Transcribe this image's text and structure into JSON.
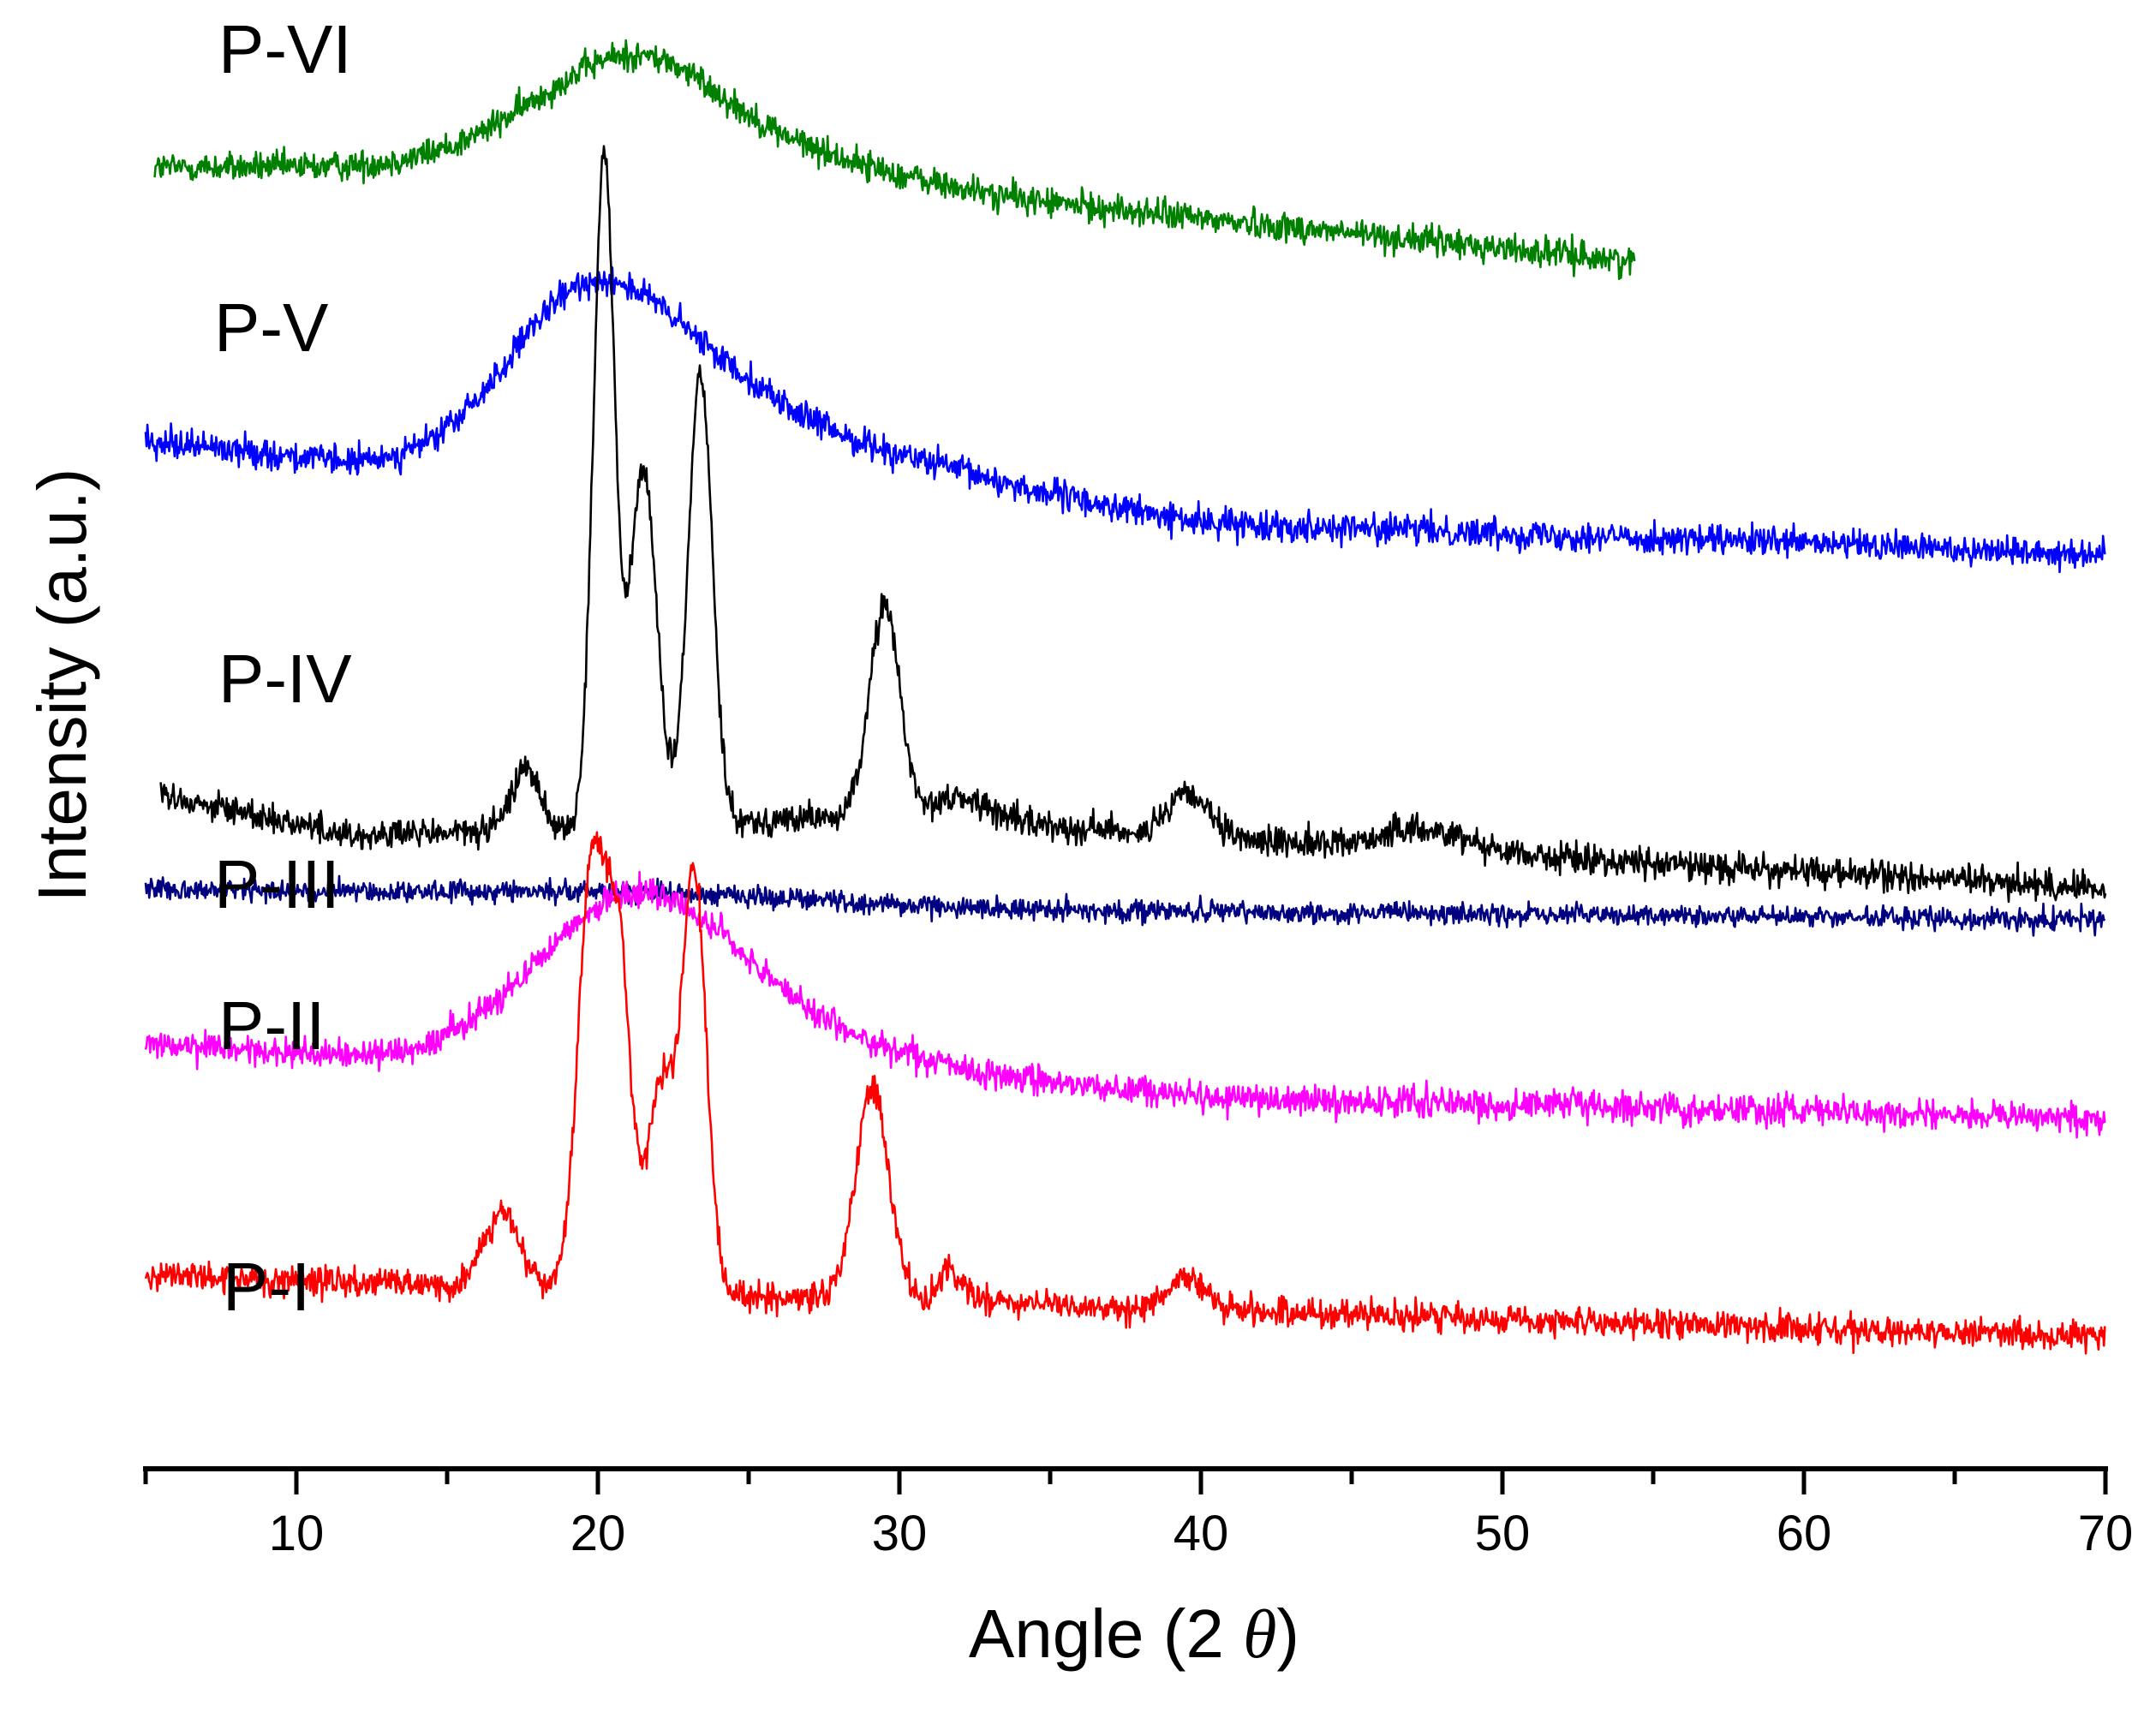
{
  "chart_data": {
    "type": "line",
    "title": "",
    "xlabel": "Angle (2θ)",
    "xlabel_prefix": "Angle (2 ",
    "xlabel_symbol": "θ",
    "xlabel_suffix": ")",
    "ylabel": "Intensity (a.u.)",
    "xlim": [
      5,
      70
    ],
    "xticks": [
      10,
      20,
      30,
      40,
      50,
      60,
      70
    ],
    "y_units": "arbitrary (stacked, offset traces; no y ticks shown)",
    "grid": false,
    "series": [
      {
        "name": "P-VI",
        "color": "#008000",
        "x_start": 5.3,
        "x_end": 54.4,
        "baseline": 1.0,
        "offset": 4.9,
        "noise": 0.07,
        "peaks": [
          [
            20.5,
            0.42,
            3.2
          ],
          [
            22.0,
            0.1,
            2.0
          ],
          [
            26.0,
            0.12,
            3.5
          ]
        ],
        "baseline_points": [
          [
            5.3,
            1.0
          ],
          [
            20,
            1.0
          ],
          [
            30,
            0.9
          ],
          [
            54.4,
            0.55
          ]
        ]
      },
      {
        "name": "P-V",
        "color": "#0000ff",
        "x_start": 5.0,
        "x_end": 70.0,
        "baseline": 1.0,
        "offset": 3.6,
        "noise": 0.07,
        "peaks": [
          [
            19.6,
            0.75,
            2.6
          ],
          [
            23.5,
            0.22,
            2.5
          ],
          [
            28,
            0.1,
            4.0
          ]
        ],
        "baseline_points": [
          [
            5.0,
            1.0
          ],
          [
            12,
            0.88
          ],
          [
            25,
            0.95
          ],
          [
            40,
            0.6
          ],
          [
            70,
            0.45
          ]
        ]
      },
      {
        "name": "P-IV",
        "color": "#000000",
        "x_start": 5.5,
        "x_end": 70.0,
        "baseline": 1.0,
        "offset": 1.9,
        "noise": 0.07,
        "peaks": [
          [
            17.6,
            0.3,
            0.45
          ],
          [
            20.2,
            3.2,
            0.35
          ],
          [
            21.5,
            1.7,
            0.45
          ],
          [
            23.4,
            2.15,
            0.4
          ],
          [
            29.5,
            1.0,
            0.5
          ],
          [
            32.0,
            0.1,
            1.0
          ],
          [
            39.6,
            0.2,
            0.6
          ],
          [
            47.5,
            0.1,
            1.5
          ]
        ],
        "baseline_points": [
          [
            5.5,
            1.0
          ],
          [
            12,
            0.8
          ],
          [
            30,
            0.9
          ],
          [
            45,
            0.75
          ],
          [
            70,
            0.55
          ]
        ]
      },
      {
        "name": "P-III",
        "color": "#000080",
        "x_start": 5.0,
        "x_end": 70.0,
        "baseline": 1.0,
        "offset": 1.55,
        "noise": 0.05,
        "peaks": [
          [
            22,
            0.05,
            6
          ]
        ],
        "baseline_points": [
          [
            5.0,
            0.9
          ],
          [
            30,
            0.8
          ],
          [
            70,
            0.75
          ]
        ]
      },
      {
        "name": "P-II",
        "color": "#ff00ff",
        "x_start": 5.0,
        "x_end": 70.0,
        "baseline": 1.0,
        "offset": 0.9,
        "noise": 0.07,
        "peaks": [
          [
            20.0,
            0.45,
            3.0
          ],
          [
            22.5,
            0.4,
            3.0
          ],
          [
            26.0,
            0.12,
            3.0
          ]
        ],
        "baseline_points": [
          [
            5.0,
            0.8
          ],
          [
            15,
            0.72
          ],
          [
            30,
            0.7
          ],
          [
            40,
            0.55
          ],
          [
            70,
            0.45
          ]
        ]
      },
      {
        "name": "P-I",
        "color": "#ff0000",
        "x_start": 5.0,
        "x_end": 70.0,
        "baseline": 1.0,
        "offset": 0.0,
        "noise": 0.07,
        "peaks": [
          [
            16.8,
            0.35,
            0.6
          ],
          [
            19.8,
            2.0,
            0.45
          ],
          [
            20.7,
            1.55,
            0.4
          ],
          [
            22.1,
            1.0,
            0.45
          ],
          [
            23.2,
            2.0,
            0.4
          ],
          [
            29.1,
            1.0,
            0.55
          ],
          [
            31.7,
            0.15,
            0.4
          ],
          [
            39.5,
            0.15,
            0.6
          ]
        ],
        "baseline_points": [
          [
            5.0,
            0.6
          ],
          [
            15,
            0.55
          ],
          [
            25,
            0.5
          ],
          [
            70,
            0.3
          ]
        ]
      }
    ]
  }
}
